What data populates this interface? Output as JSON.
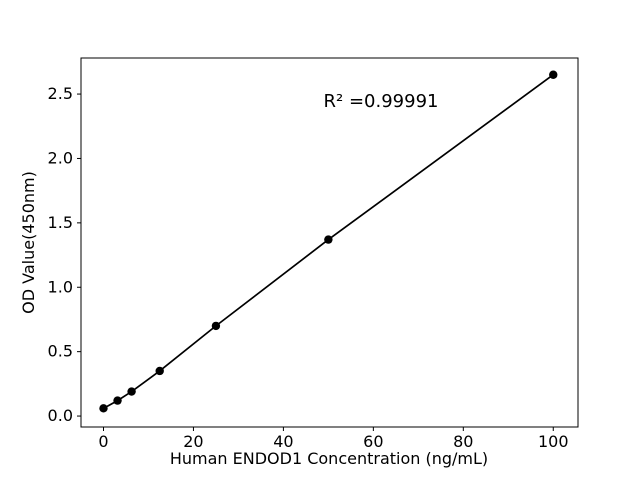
{
  "figure": {
    "background": "#ffffff"
  },
  "chart_data": {
    "type": "scatter",
    "x": [
      0,
      3.125,
      6.25,
      12.5,
      25,
      50,
      100
    ],
    "y": [
      0.06,
      0.12,
      0.19,
      0.35,
      0.7,
      1.37,
      2.65
    ],
    "title": "",
    "xlabel": "Human ENDOD1 Concentration (ng/mL)",
    "ylabel": "OD Value(450nm)",
    "annotation": "R² =0.99991",
    "xlim": [
      -5,
      105.5
    ],
    "ylim": [
      -0.085,
      2.78
    ],
    "xticks": [
      0,
      20,
      40,
      60,
      80,
      100
    ],
    "xtick_labels": [
      "0",
      "20",
      "40",
      "60",
      "80",
      "100"
    ],
    "yticks": [
      0,
      0.5,
      1,
      1.5,
      2,
      2.5
    ],
    "ytick_labels": [
      "0.0",
      "0.5",
      "1.0",
      "1.5",
      "2.0",
      "2.5"
    ],
    "grid": false,
    "legend": null,
    "line": true,
    "marker": "circle",
    "axis_color": "#000000",
    "line_color": "#000000",
    "marker_color": "#000000",
    "background": "#ffffff"
  }
}
